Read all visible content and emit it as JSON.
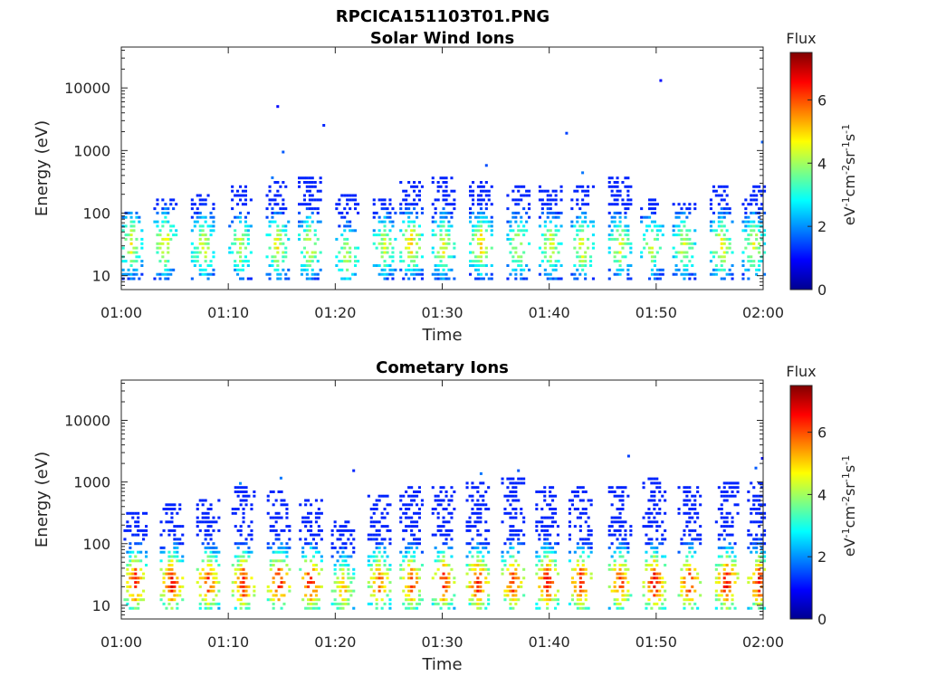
{
  "figure": {
    "title_line1": "RPCICA151103T01.PNG"
  },
  "chart_data": [
    {
      "type": "heatmap",
      "title": "Solar Wind Ions",
      "xlabel": "Time",
      "ylabel": "Energy (eV)",
      "xticks": [
        "01:00",
        "01:10",
        "01:20",
        "01:30",
        "01:40",
        "01:50",
        "02:00"
      ],
      "xlim_minutes": [
        0,
        60
      ],
      "yscale": "log",
      "ylim": [
        6,
        45000
      ],
      "yticks": [
        10,
        100,
        1000,
        10000
      ],
      "ytick_labels": [
        "10",
        "100",
        "1000",
        "10000"
      ],
      "colorbar": {
        "title": "Flux",
        "label_base": "eV",
        "label_exp": [
          "-1",
          "-2",
          "-1",
          "-1"
        ],
        "label_units": [
          "cm",
          "sr",
          "s"
        ],
        "range": [
          0,
          7.5
        ],
        "ticks": [
          0,
          2,
          4,
          6
        ],
        "tick_labels": [
          "0",
          "2",
          "4",
          "6"
        ],
        "colormap": "jet"
      },
      "bursts": [
        {
          "t": 0.8,
          "e": 30,
          "top": 100,
          "peak": 4.6
        },
        {
          "t": 4.0,
          "e": 30,
          "top": 180,
          "peak": 4.8
        },
        {
          "t": 7.5,
          "e": 28,
          "top": 200,
          "peak": 4.6
        },
        {
          "t": 11.0,
          "e": 28,
          "top": 280,
          "peak": 4.4
        },
        {
          "t": 14.5,
          "e": 28,
          "top": 300,
          "peak": 4.7
        },
        {
          "t": 17.5,
          "e": 28,
          "top": 350,
          "peak": 4.6
        },
        {
          "t": 21.0,
          "e": 20,
          "top": 200,
          "peak": 4.2
        },
        {
          "t": 24.5,
          "e": 28,
          "top": 180,
          "peak": 4.4
        },
        {
          "t": 27.0,
          "e": 30,
          "top": 300,
          "peak": 5.0
        },
        {
          "t": 30.0,
          "e": 28,
          "top": 380,
          "peak": 4.6
        },
        {
          "t": 33.5,
          "e": 30,
          "top": 320,
          "peak": 5.0
        },
        {
          "t": 37.0,
          "e": 28,
          "top": 280,
          "peak": 4.4
        },
        {
          "t": 40.0,
          "e": 28,
          "top": 260,
          "peak": 4.6
        },
        {
          "t": 43.0,
          "e": 28,
          "top": 280,
          "peak": 4.8
        },
        {
          "t": 46.5,
          "e": 28,
          "top": 400,
          "peak": 4.5
        },
        {
          "t": 49.5,
          "e": 28,
          "top": 160,
          "peak": 4.2
        },
        {
          "t": 52.5,
          "e": 28,
          "top": 140,
          "peak": 4.4
        },
        {
          "t": 56.0,
          "e": 28,
          "top": 280,
          "peak": 4.8
        },
        {
          "t": 59.0,
          "e": 28,
          "top": 280,
          "peak": 4.6
        }
      ],
      "points": [
        {
          "t": 14.5,
          "e": 4800,
          "v": 1.0
        },
        {
          "t": 15.0,
          "e": 900,
          "v": 1.6
        },
        {
          "t": 18.8,
          "e": 2400,
          "v": 1.2
        },
        {
          "t": 41.5,
          "e": 1800,
          "v": 1.4
        },
        {
          "t": 50.3,
          "e": 12500,
          "v": 1.0
        },
        {
          "t": 59.8,
          "e": 1300,
          "v": 1.6
        },
        {
          "t": 14.0,
          "e": 350,
          "v": 1.8
        },
        {
          "t": 34.0,
          "e": 550,
          "v": 1.5
        },
        {
          "t": 43.0,
          "e": 420,
          "v": 1.8
        }
      ]
    },
    {
      "type": "heatmap",
      "title": "Cometary Ions",
      "xlabel": "Time",
      "ylabel": "Energy (eV)",
      "xticks": [
        "01:00",
        "01:10",
        "01:20",
        "01:30",
        "01:40",
        "01:50",
        "02:00"
      ],
      "xlim_minutes": [
        0,
        60
      ],
      "yscale": "log",
      "ylim": [
        6,
        45000
      ],
      "yticks": [
        10,
        100,
        1000,
        10000
      ],
      "ytick_labels": [
        "10",
        "100",
        "1000",
        "10000"
      ],
      "colorbar": {
        "title": "Flux",
        "label_base": "eV",
        "label_exp": [
          "-1",
          "-2",
          "-1",
          "-1"
        ],
        "label_units": [
          "cm",
          "sr",
          "s"
        ],
        "range": [
          0,
          7.5
        ],
        "ticks": [
          0,
          2,
          4,
          6
        ],
        "tick_labels": [
          "0",
          "2",
          "4",
          "6"
        ],
        "colormap": "jet"
      },
      "bursts": [
        {
          "t": 1.2,
          "e": 22,
          "top": 300,
          "peak": 6.5
        },
        {
          "t": 4.6,
          "e": 22,
          "top": 450,
          "peak": 6.6
        },
        {
          "t": 8.0,
          "e": 22,
          "top": 500,
          "peak": 6.4
        },
        {
          "t": 11.3,
          "e": 22,
          "top": 800,
          "peak": 6.6
        },
        {
          "t": 14.6,
          "e": 22,
          "top": 700,
          "peak": 6.7
        },
        {
          "t": 17.6,
          "e": 22,
          "top": 500,
          "peak": 6.6
        },
        {
          "t": 20.6,
          "e": 18,
          "top": 250,
          "peak": 5.4
        },
        {
          "t": 24.0,
          "e": 22,
          "top": 600,
          "peak": 6.0
        },
        {
          "t": 27.0,
          "e": 22,
          "top": 800,
          "peak": 6.2
        },
        {
          "t": 30.0,
          "e": 22,
          "top": 900,
          "peak": 6.4
        },
        {
          "t": 33.2,
          "e": 22,
          "top": 1000,
          "peak": 6.6
        },
        {
          "t": 36.5,
          "e": 22,
          "top": 1100,
          "peak": 6.4
        },
        {
          "t": 39.7,
          "e": 22,
          "top": 900,
          "peak": 6.8
        },
        {
          "t": 42.8,
          "e": 22,
          "top": 800,
          "peak": 6.6
        },
        {
          "t": 46.5,
          "e": 22,
          "top": 800,
          "peak": 6.4
        },
        {
          "t": 49.7,
          "e": 22,
          "top": 1100,
          "peak": 6.8
        },
        {
          "t": 53.0,
          "e": 22,
          "top": 800,
          "peak": 6.5
        },
        {
          "t": 56.5,
          "e": 22,
          "top": 1000,
          "peak": 6.8
        },
        {
          "t": 59.5,
          "e": 22,
          "top": 1000,
          "peak": 6.6
        }
      ],
      "points": [
        {
          "t": 21.6,
          "e": 1450,
          "v": 1.2
        },
        {
          "t": 47.3,
          "e": 2500,
          "v": 1.4
        },
        {
          "t": 59.8,
          "e": 2300,
          "v": 1.0
        },
        {
          "t": 59.2,
          "e": 1600,
          "v": 1.6
        },
        {
          "t": 37.0,
          "e": 1450,
          "v": 1.6
        },
        {
          "t": 33.5,
          "e": 1300,
          "v": 1.8
        },
        {
          "t": 11.0,
          "e": 900,
          "v": 2.0
        },
        {
          "t": 14.8,
          "e": 1100,
          "v": 1.8
        }
      ]
    }
  ]
}
